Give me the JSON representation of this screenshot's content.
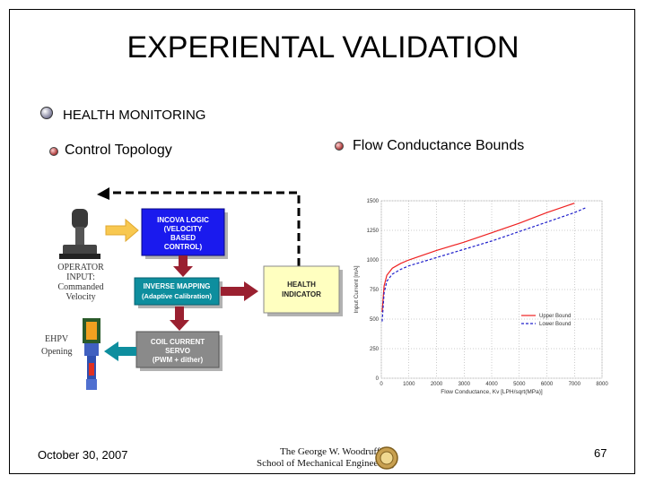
{
  "slide": {
    "title": "EXPERIENTAL VALIDATION",
    "main_bullet": "HEALTH MONITORING",
    "left_heading": "Control Topology",
    "right_heading": "Flow Conductance Bounds",
    "footer_date": "October 30, 2007",
    "page_number": "67",
    "logo_line1": "The George W. Woodruff",
    "logo_line2": "School of Mechanical Engineering"
  },
  "diagram": {
    "operator_label_1": "OPERATOR",
    "operator_label_2": "INPUT:",
    "operator_label_3": "Commanded",
    "operator_label_4": "Velocity",
    "ehpv_label_1": "EHPV",
    "ehpv_label_2": "Opening",
    "box_incova": [
      "INCOVA LOGIC",
      "(VELOCITY",
      "BASED",
      "CONTROL)"
    ],
    "box_inverse": [
      "INVERSE MAPPING",
      "(Adaptive Calibration)"
    ],
    "box_coil": [
      "COIL CURRENT",
      "SERVO",
      "(PWM + dither)"
    ],
    "box_health": [
      "HEALTH",
      "INDICATOR"
    ],
    "colors": {
      "blue": "#1a1aee",
      "teal": "#0e8e9e",
      "gray": "#8a8a8a",
      "yellow": "#ffffc0",
      "arrow": "#9a2030"
    }
  },
  "chart_data": {
    "type": "line",
    "xlabel": "Flow Conductance, Kv [LPH/sqrt(MPa)]",
    "ylabel": "Input Current [mA]",
    "xlim": [
      0,
      8000
    ],
    "ylim": [
      0,
      1500
    ],
    "xticks": [
      0,
      1000,
      2000,
      3000,
      4000,
      5000,
      6000,
      7000,
      8000
    ],
    "yticks": [
      0,
      250,
      500,
      750,
      1000,
      1250,
      1500
    ],
    "legend_position": "bottom-right",
    "series": [
      {
        "name": "Upper Bound",
        "color": "#ee2020",
        "dash": "solid",
        "x": [
          30,
          100,
          200,
          400,
          700,
          1000,
          2000,
          3000,
          4000,
          5000,
          6000,
          7000,
          7000
        ],
        "y": [
          560,
          780,
          870,
          930,
          970,
          1000,
          1080,
          1150,
          1230,
          1310,
          1400,
          1480,
          1480
        ]
      },
      {
        "name": "Lower Bound",
        "color": "#2020cc",
        "dash": "dashed",
        "x": [
          30,
          100,
          200,
          400,
          700,
          1000,
          2000,
          3000,
          4000,
          5000,
          6000,
          7000,
          7400
        ],
        "y": [
          480,
          720,
          820,
          880,
          920,
          950,
          1020,
          1090,
          1160,
          1240,
          1320,
          1400,
          1440
        ]
      }
    ]
  }
}
